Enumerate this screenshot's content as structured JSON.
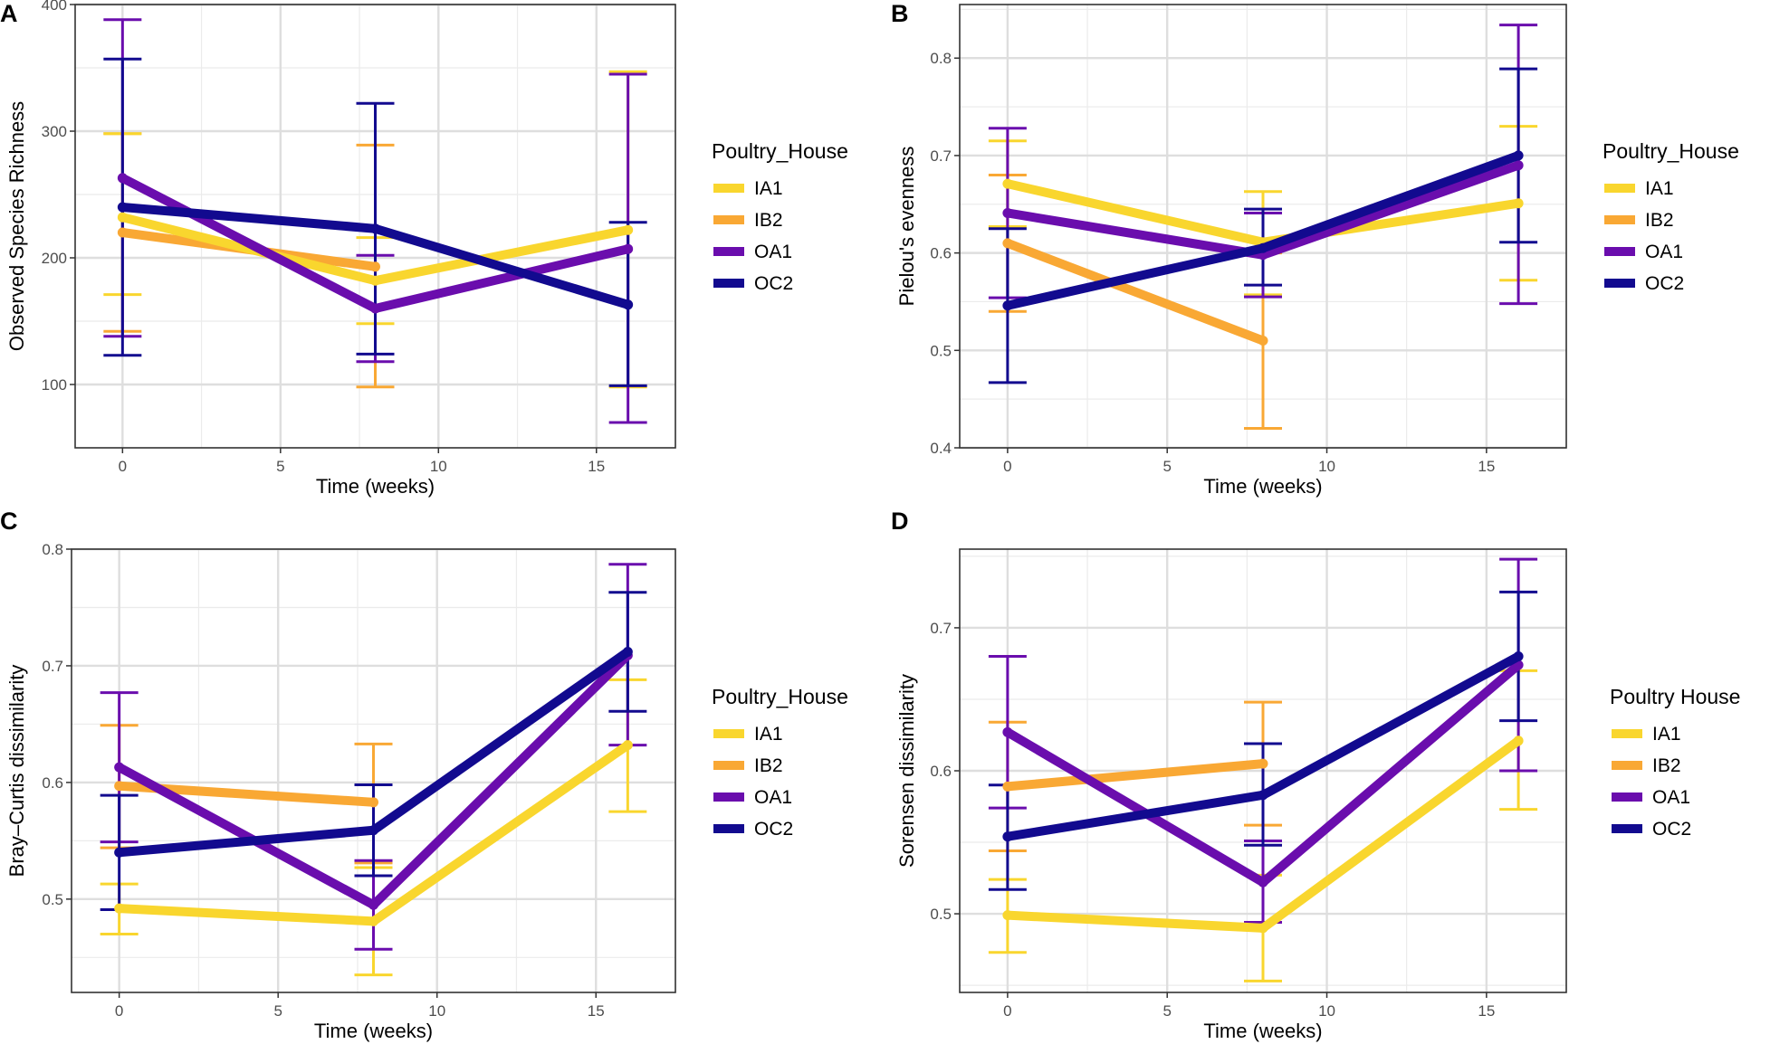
{
  "figure": {
    "colors": {
      "IA1": "#F9D62E",
      "IB2": "#F9A834",
      "OA1": "#6A0DAD",
      "OC2": "#120A8F"
    }
  },
  "chart_data": [
    {
      "panel": "A",
      "type": "line",
      "xlabel": "Time (weeks)",
      "ylabel": "Observed Species Richness",
      "xlim": [
        -1.5,
        17.5
      ],
      "ylim": [
        50,
        400
      ],
      "xticks": [
        0,
        5,
        10,
        15
      ],
      "yticks": [
        100,
        200,
        300,
        400
      ],
      "grid": true,
      "legend": {
        "title": "Poultry_House",
        "position": "right"
      },
      "series": [
        {
          "name": "IA1",
          "x": [
            0,
            8,
            16
          ],
          "y": [
            232,
            182,
            222
          ],
          "lo": [
            171,
            148,
            98
          ],
          "hi": [
            298,
            216,
            347
          ]
        },
        {
          "name": "IB2",
          "x": [
            0,
            8
          ],
          "y": [
            220,
            193
          ],
          "lo": [
            142,
            98
          ],
          "hi": [
            298,
            289
          ]
        },
        {
          "name": "OA1",
          "x": [
            0,
            8,
            16
          ],
          "y": [
            263,
            160,
            207
          ],
          "lo": [
            138,
            118,
            70
          ],
          "hi": [
            388,
            202,
            345
          ]
        },
        {
          "name": "OC2",
          "x": [
            0,
            8,
            16
          ],
          "y": [
            240,
            223,
            163
          ],
          "lo": [
            123,
            124,
            99
          ],
          "hi": [
            357,
            322,
            228
          ]
        }
      ]
    },
    {
      "panel": "B",
      "type": "line",
      "xlabel": "Time (weeks)",
      "ylabel": "Pielou's evenness",
      "xlim": [
        -1.5,
        17.5
      ],
      "ylim": [
        0.4,
        0.855
      ],
      "xticks": [
        0,
        5,
        10,
        15
      ],
      "yticks": [
        0.4,
        0.5,
        0.6,
        0.7,
        0.8
      ],
      "grid": true,
      "legend": {
        "title": "Poultry_House",
        "position": "right"
      },
      "series": [
        {
          "name": "IA1",
          "x": [
            0,
            8,
            16
          ],
          "y": [
            0.671,
            0.611,
            0.651
          ],
          "lo": [
            0.627,
            0.557,
            0.572
          ],
          "hi": [
            0.715,
            0.663,
            0.73
          ]
        },
        {
          "name": "IB2",
          "x": [
            0,
            8
          ],
          "y": [
            0.61,
            0.51
          ],
          "lo": [
            0.54,
            0.42
          ],
          "hi": [
            0.68,
            0.6
          ]
        },
        {
          "name": "OA1",
          "x": [
            0,
            8,
            16
          ],
          "y": [
            0.641,
            0.598,
            0.69
          ],
          "lo": [
            0.554,
            0.555,
            0.548
          ],
          "hi": [
            0.728,
            0.641,
            0.834
          ]
        },
        {
          "name": "OC2",
          "x": [
            0,
            8,
            16
          ],
          "y": [
            0.546,
            0.605,
            0.7
          ],
          "lo": [
            0.467,
            0.567,
            0.611
          ],
          "hi": [
            0.625,
            0.645,
            0.789
          ]
        }
      ]
    },
    {
      "panel": "C",
      "type": "line",
      "xlabel": "Time (weeks)",
      "ylabel": "Bray–Curtis dissimilarity",
      "xlim": [
        -1.5,
        17.5
      ],
      "ylim": [
        0.42,
        0.8
      ],
      "xticks": [
        0,
        5,
        10,
        15
      ],
      "yticks": [
        0.5,
        0.6,
        0.7,
        0.8
      ],
      "grid": true,
      "legend": {
        "title": "Poultry_House",
        "position": "right"
      },
      "series": [
        {
          "name": "IA1",
          "x": [
            0,
            8,
            16
          ],
          "y": [
            0.492,
            0.481,
            0.632
          ],
          "lo": [
            0.47,
            0.435,
            0.575
          ],
          "hi": [
            0.513,
            0.527,
            0.688
          ]
        },
        {
          "name": "IB2",
          "x": [
            0,
            8
          ],
          "y": [
            0.597,
            0.583
          ],
          "lo": [
            0.544,
            0.531
          ],
          "hi": [
            0.649,
            0.633
          ]
        },
        {
          "name": "OA1",
          "x": [
            0,
            8,
            16
          ],
          "y": [
            0.613,
            0.495,
            0.709
          ],
          "lo": [
            0.549,
            0.457,
            0.632
          ],
          "hi": [
            0.677,
            0.533,
            0.787
          ]
        },
        {
          "name": "OC2",
          "x": [
            0,
            8,
            16
          ],
          "y": [
            0.54,
            0.559,
            0.712
          ],
          "lo": [
            0.491,
            0.52,
            0.661
          ],
          "hi": [
            0.589,
            0.598,
            0.763
          ]
        }
      ]
    },
    {
      "panel": "D",
      "type": "line",
      "xlabel": "Time (weeks)",
      "ylabel": "Sorensen dissimilarity",
      "xlim": [
        -1.5,
        17.5
      ],
      "ylim": [
        0.445,
        0.755
      ],
      "xticks": [
        0,
        5,
        10,
        15
      ],
      "yticks": [
        0.5,
        0.6,
        0.7
      ],
      "grid": true,
      "legend": {
        "title": "Poultry House",
        "position": "right"
      },
      "series": [
        {
          "name": "IA1",
          "x": [
            0,
            8,
            16
          ],
          "y": [
            0.499,
            0.49,
            0.621
          ],
          "lo": [
            0.473,
            0.453,
            0.573
          ],
          "hi": [
            0.524,
            0.527,
            0.67
          ]
        },
        {
          "name": "IB2",
          "x": [
            0,
            8
          ],
          "y": [
            0.589,
            0.605
          ],
          "lo": [
            0.544,
            0.562
          ],
          "hi": [
            0.634,
            0.648
          ]
        },
        {
          "name": "OA1",
          "x": [
            0,
            8,
            16
          ],
          "y": [
            0.627,
            0.522,
            0.674
          ],
          "lo": [
            0.574,
            0.494,
            0.6
          ],
          "hi": [
            0.68,
            0.551,
            0.748
          ]
        },
        {
          "name": "OC2",
          "x": [
            0,
            8,
            16
          ],
          "y": [
            0.554,
            0.583,
            0.68
          ],
          "lo": [
            0.517,
            0.548,
            0.635
          ],
          "hi": [
            0.59,
            0.619,
            0.725
          ]
        }
      ]
    }
  ]
}
